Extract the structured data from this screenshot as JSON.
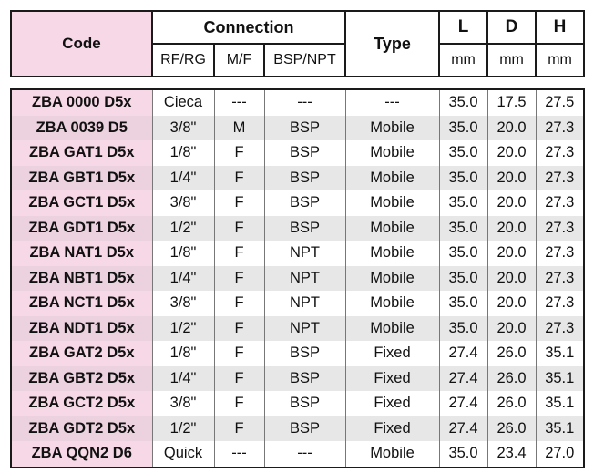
{
  "header": {
    "code": "Code",
    "connection": "Connection",
    "rf_rg": "RF/RG",
    "m_f": "M/F",
    "bsp_npt": "BSP/NPT",
    "type": "Type",
    "l": "L",
    "d": "D",
    "h": "H",
    "unit_l": "mm",
    "unit_d": "mm",
    "unit_h": "mm"
  },
  "rows": [
    [
      "ZBA 0000 D5x",
      "Cieca",
      "---",
      "---",
      "---",
      "35.0",
      "17.5",
      "27.5"
    ],
    [
      "ZBA 0039 D5",
      "3/8\"",
      "M",
      "BSP",
      "Mobile",
      "35.0",
      "20.0",
      "27.3"
    ],
    [
      "ZBA GAT1 D5x",
      "1/8\"",
      "F",
      "BSP",
      "Mobile",
      "35.0",
      "20.0",
      "27.3"
    ],
    [
      "ZBA GBT1 D5x",
      "1/4\"",
      "F",
      "BSP",
      "Mobile",
      "35.0",
      "20.0",
      "27.3"
    ],
    [
      "ZBA GCT1 D5x",
      "3/8\"",
      "F",
      "BSP",
      "Mobile",
      "35.0",
      "20.0",
      "27.3"
    ],
    [
      "ZBA GDT1 D5x",
      "1/2\"",
      "F",
      "BSP",
      "Mobile",
      "35.0",
      "20.0",
      "27.3"
    ],
    [
      "ZBA NAT1 D5x",
      "1/8\"",
      "F",
      "NPT",
      "Mobile",
      "35.0",
      "20.0",
      "27.3"
    ],
    [
      "ZBA NBT1 D5x",
      "1/4\"",
      "F",
      "NPT",
      "Mobile",
      "35.0",
      "20.0",
      "27.3"
    ],
    [
      "ZBA NCT1 D5x",
      "3/8\"",
      "F",
      "NPT",
      "Mobile",
      "35.0",
      "20.0",
      "27.3"
    ],
    [
      "ZBA NDT1 D5x",
      "1/2\"",
      "F",
      "NPT",
      "Mobile",
      "35.0",
      "20.0",
      "27.3"
    ],
    [
      "ZBA GAT2 D5x",
      "1/8\"",
      "F",
      "BSP",
      "Fixed",
      "27.4",
      "26.0",
      "35.1"
    ],
    [
      "ZBA GBT2 D5x",
      "1/4\"",
      "F",
      "BSP",
      "Fixed",
      "27.4",
      "26.0",
      "35.1"
    ],
    [
      "ZBA GCT2 D5x",
      "3/8\"",
      "F",
      "BSP",
      "Fixed",
      "27.4",
      "26.0",
      "35.1"
    ],
    [
      "ZBA GDT2 D5x",
      "1/2\"",
      "F",
      "BSP",
      "Fixed",
      "27.4",
      "26.0",
      "35.1"
    ],
    [
      "ZBA QQN2 D6",
      "Quick",
      "---",
      "---",
      "Mobile",
      "35.0",
      "23.4",
      "27.0"
    ]
  ]
}
